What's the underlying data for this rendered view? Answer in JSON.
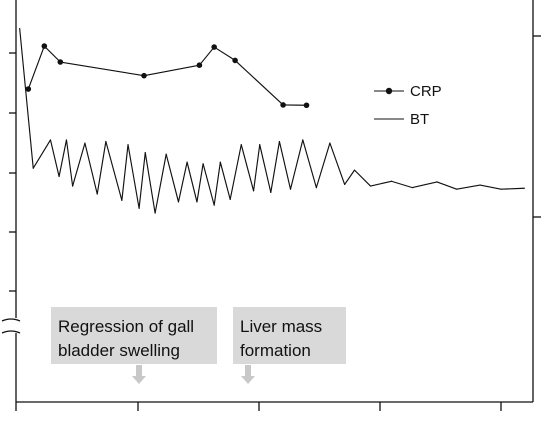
{
  "chart_data": {
    "type": "line",
    "title": "",
    "xlabel": "",
    "ylabel": "",
    "grid": false,
    "legend_position": "top-right",
    "colors": {
      "line": "#111111",
      "annotation_box": "#d9d9d9",
      "annotation_arrow": "#c8c8c8",
      "axis": "#111111"
    },
    "x_range": [
      0,
      42
    ],
    "y_range": [
      0,
      100
    ],
    "y_axis_break": true,
    "legend": [
      {
        "name": "CRP",
        "symbol": "line-marker"
      },
      {
        "name": "BT",
        "symbol": "line"
      }
    ],
    "series": [
      {
        "name": "CRP",
        "marker": "circle",
        "points": [
          [
            1.0,
            72.0
          ],
          [
            2.3,
            85.5
          ],
          [
            3.6,
            80.5
          ],
          [
            10.4,
            76.2
          ],
          [
            14.9,
            79.5
          ],
          [
            16.1,
            85.2
          ],
          [
            17.8,
            81.0
          ],
          [
            21.7,
            67.0
          ],
          [
            23.6,
            66.9
          ]
        ]
      },
      {
        "name": "BT",
        "marker": "none",
        "points": [
          [
            0.3,
            91.0
          ],
          [
            1.4,
            47.1
          ],
          [
            2.8,
            56.0
          ],
          [
            3.5,
            44.5
          ],
          [
            4.1,
            56.0
          ],
          [
            4.6,
            41.5
          ],
          [
            5.6,
            55.0
          ],
          [
            6.6,
            39.0
          ],
          [
            7.3,
            55.5
          ],
          [
            8.6,
            37.0
          ],
          [
            9.1,
            54.5
          ],
          [
            10.0,
            34.5
          ],
          [
            10.5,
            52.0
          ],
          [
            11.3,
            33.0
          ],
          [
            12.2,
            51.5
          ],
          [
            13.2,
            36.5
          ],
          [
            13.9,
            49.0
          ],
          [
            14.7,
            36.5
          ],
          [
            15.2,
            48.5
          ],
          [
            16.1,
            35.5
          ],
          [
            16.6,
            49.0
          ],
          [
            17.4,
            37.3
          ],
          [
            18.3,
            54.5
          ],
          [
            19.3,
            40.0
          ],
          [
            19.8,
            54.5
          ],
          [
            20.7,
            39.5
          ],
          [
            21.4,
            55.5
          ],
          [
            22.3,
            40.5
          ],
          [
            23.3,
            56.0
          ],
          [
            24.4,
            41.0
          ],
          [
            25.5,
            55.0
          ],
          [
            26.7,
            42.0
          ],
          [
            27.5,
            46.5
          ],
          [
            28.8,
            41.5
          ],
          [
            30.5,
            43.0
          ],
          [
            32.2,
            41.0
          ],
          [
            34.2,
            42.8
          ],
          [
            35.8,
            40.5
          ],
          [
            37.7,
            41.8
          ],
          [
            39.4,
            40.5
          ],
          [
            41.3,
            40.8
          ]
        ]
      }
    ],
    "annotations": [
      {
        "text_lines": [
          "Regression of gall",
          "bladder swelling"
        ],
        "x": 10.0,
        "arrow": "down"
      },
      {
        "text_lines": [
          "Liver mass",
          "formation"
        ],
        "x": 18.8,
        "arrow": "down"
      }
    ]
  }
}
